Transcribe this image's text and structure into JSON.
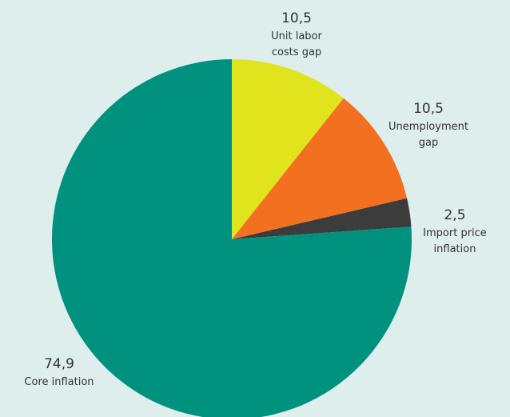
{
  "chart_data": {
    "type": "pie",
    "title": "",
    "slices": [
      {
        "label_lines": [
          "Unit labor",
          "costs gap"
        ],
        "value_label": "10,5",
        "value": 10.5,
        "color": "#e1e31c"
      },
      {
        "label_lines": [
          "Unemployment",
          "gap"
        ],
        "value_label": "10,5",
        "value": 10.5,
        "color": "#f37021"
      },
      {
        "label_lines": [
          "Import price",
          "inflation"
        ],
        "value_label": "2,5",
        "value": 2.5,
        "color": "#3c3c3c"
      },
      {
        "label_lines": [
          "Core inflation"
        ],
        "value_label": "74,9",
        "value": 74.9,
        "color": "#00927f"
      }
    ],
    "start_angle_deg": 0,
    "direction": "clockwise",
    "background": "#ddeeed"
  }
}
